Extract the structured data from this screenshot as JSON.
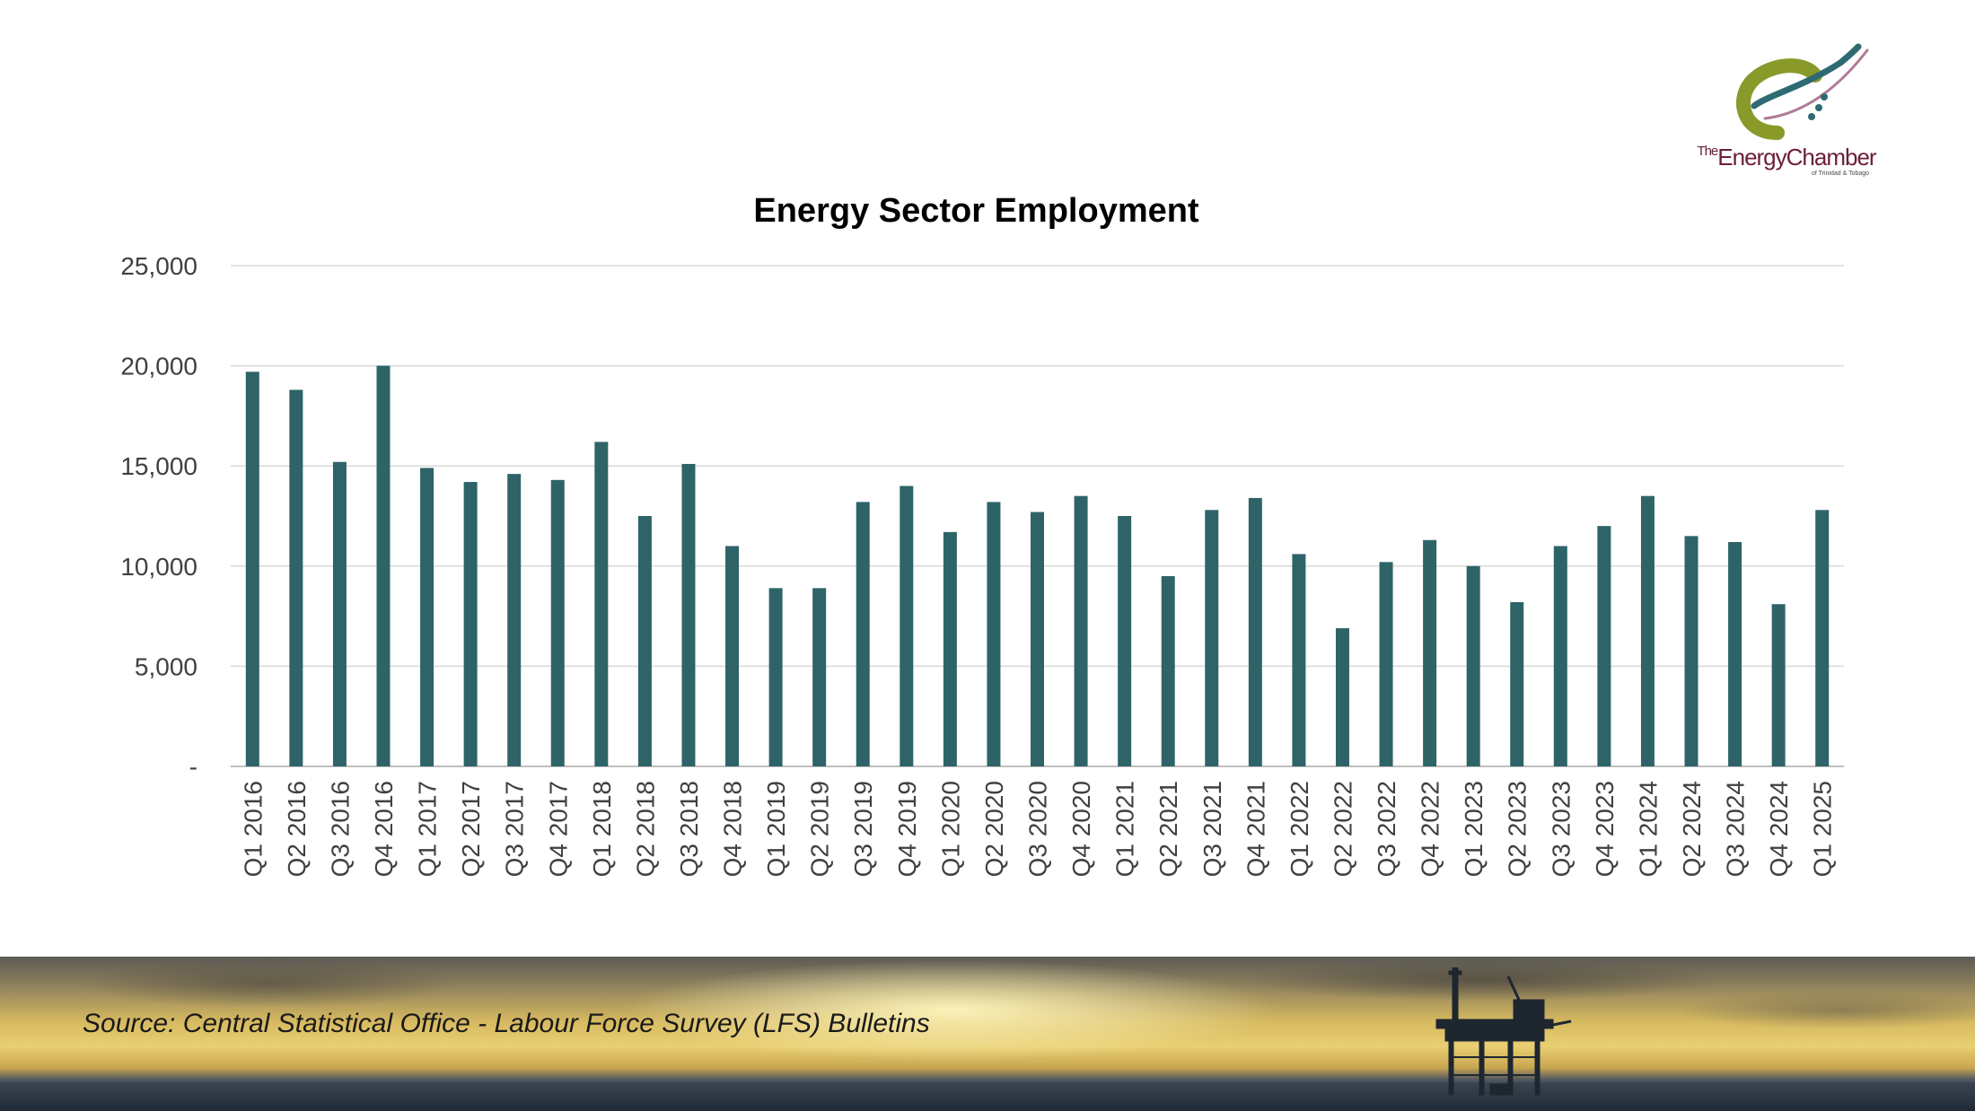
{
  "brand": {
    "logo_the": "The",
    "logo_name": "EnergyChamber",
    "logo_subtitle": "of Trinidad & Tobago",
    "colors": {
      "bar": "#2e6468",
      "logo_green": "#8a9a2a",
      "logo_teal": "#2e6a72",
      "logo_maroon": "#6b1e3c"
    }
  },
  "footer": {
    "source": "Source: Central Statistical Office - Labour Force Survey (LFS) Bulletins"
  },
  "chart_data": {
    "type": "bar",
    "title": "Energy Sector Employment",
    "xlabel": "",
    "ylabel": "",
    "ylim": [
      0,
      25000
    ],
    "yticks": [
      0,
      5000,
      10000,
      15000,
      20000,
      25000
    ],
    "ytick_labels": [
      "-",
      "5,000",
      "10,000",
      "15,000",
      "20,000",
      "25,000"
    ],
    "grid": true,
    "legend": "none",
    "categories": [
      "Q1 2016",
      "Q2 2016",
      "Q3 2016",
      "Q4 2016",
      "Q1 2017",
      "Q2 2017",
      "Q3 2017",
      "Q4 2017",
      "Q1 2018",
      "Q2 2018",
      "Q3 2018",
      "Q4 2018",
      "Q1 2019",
      "Q2 2019",
      "Q3 2019",
      "Q4 2019",
      "Q1 2020",
      "Q2 2020",
      "Q3 2020",
      "Q4 2020",
      "Q1 2021",
      "Q2 2021",
      "Q3 2021",
      "Q4 2021",
      "Q1 2022",
      "Q2 2022",
      "Q3 2022",
      "Q4 2022",
      "Q1 2023",
      "Q2 2023",
      "Q3 2023",
      "Q4 2023",
      "Q1 2024",
      "Q2 2024",
      "Q3 2024",
      "Q4 2024",
      "Q1 2025"
    ],
    "values": [
      19700,
      18800,
      15200,
      20000,
      14900,
      14200,
      14600,
      14300,
      16200,
      12500,
      15100,
      11000,
      8900,
      8900,
      13200,
      14000,
      11700,
      13200,
      12700,
      13500,
      12500,
      9500,
      12800,
      13400,
      10600,
      6900,
      10200,
      11300,
      10000,
      8200,
      11000,
      12000,
      13500,
      11500,
      11200,
      8100,
      12800
    ]
  }
}
